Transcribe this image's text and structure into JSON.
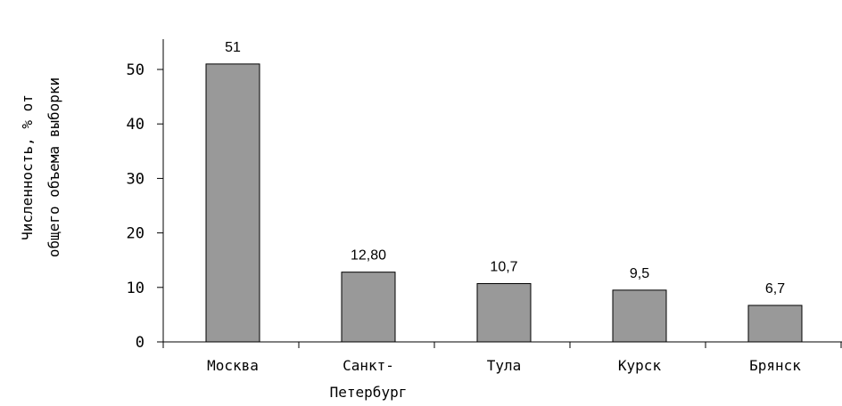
{
  "chart_data": {
    "type": "bar",
    "title": "",
    "xlabel": "",
    "ylabel_line1": "Численность, % от",
    "ylabel_line2": "общего объема выборки",
    "categories": [
      {
        "line1": "Москва",
        "line2": ""
      },
      {
        "line1": "Санкт-",
        "line2": "Петербург"
      },
      {
        "line1": "Тула",
        "line2": ""
      },
      {
        "line1": "Курск",
        "line2": ""
      },
      {
        "line1": "Брянск",
        "line2": ""
      }
    ],
    "values": [
      51,
      12.8,
      10.7,
      9.5,
      6.7
    ],
    "value_labels": [
      "51",
      "12,80",
      "10,7",
      "9,5",
      "6,7"
    ],
    "yticks": [
      0,
      10,
      20,
      30,
      40,
      50
    ],
    "ytick_labels": [
      "0",
      "10",
      "20",
      "30",
      "40",
      "50"
    ],
    "ylim": [
      0,
      50
    ],
    "grid": false,
    "legend": "none",
    "bar_color": "#999999",
    "bar_edge_color": "#000000"
  }
}
